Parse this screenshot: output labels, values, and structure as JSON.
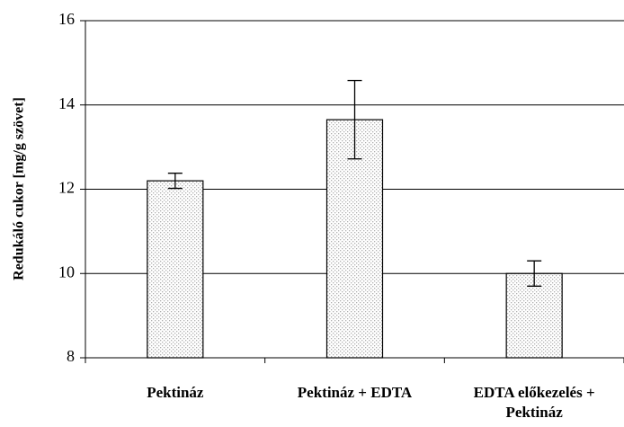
{
  "chart_data": {
    "type": "bar",
    "y_label": "Redukáló cukor [mg/g szövet]",
    "categories": [
      "Pektináz",
      "Pektináz + EDTA",
      "EDTA előkezelés + Pektináz"
    ],
    "values": [
      12.2,
      13.65,
      10.0
    ],
    "errors": [
      0.18,
      0.93,
      0.3
    ],
    "color": "#b0b0b0",
    "ylim": [
      8,
      16
    ],
    "yticks": [
      8,
      10,
      12,
      14,
      16
    ],
    "grid": true
  }
}
